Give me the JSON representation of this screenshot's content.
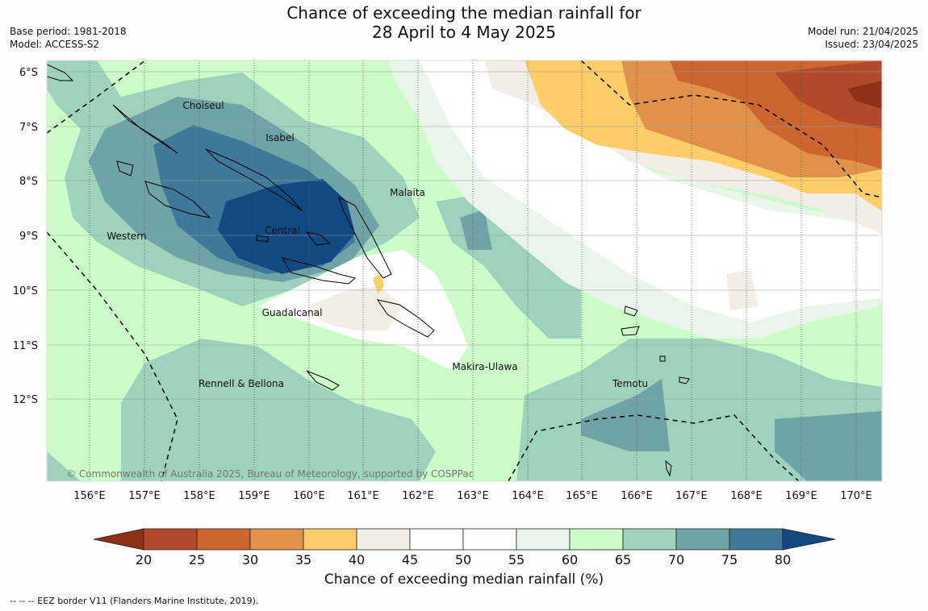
{
  "title_line1": "Chance of exceeding the median rainfall for",
  "title_line2": "28 April to 4 May 2025",
  "base_period": "Base period: 1981-2018",
  "model": "Model: ACCESS-S2",
  "model_run": "Model run: 21/04/2025",
  "issued": "Issued: 23/04/2025",
  "copyright": "© Commonwealth of Australia 2025, Bureau of Meteorology, supported by COSPPac",
  "lat_labels": [
    "6°S",
    "7°S",
    "8°S",
    "9°S",
    "10°S",
    "11°S",
    "12°S"
  ],
  "lon_labels": [
    "156°E",
    "157°E",
    "158°E",
    "159°E",
    "160°E",
    "161°E",
    "162°E",
    "163°E",
    "164°E",
    "165°E",
    "166°E",
    "167°E",
    "168°E",
    "169°E",
    "170°E"
  ],
  "provinces": [
    "Choiseul",
    "Isabel",
    "Malaita",
    "Western",
    "Central",
    "Guadalcanal",
    "Makira-Ulawa",
    "Rennell & Bellona",
    "Temotu"
  ],
  "colorbar": {
    "ticks": [
      "20",
      "25",
      "30",
      "35",
      "40",
      "45",
      "50",
      "55",
      "60",
      "65",
      "70",
      "75",
      "80"
    ],
    "colors": [
      "#8e3118",
      "#b1492a",
      "#cc6530",
      "#e0924a",
      "#fdcd68",
      "#f3ede6",
      "#ffffff",
      "#fcfcfc",
      "#eaf5ea",
      "#ccfcc8",
      "#9ed2bc",
      "#6ea4a6",
      "#3f7898",
      "#114a82"
    ],
    "label": "Chance of exceeding median rainfall (%)"
  },
  "footnote": "--  --  -- EEZ border V11 (Flanders Marine Institute, 2019)."
}
